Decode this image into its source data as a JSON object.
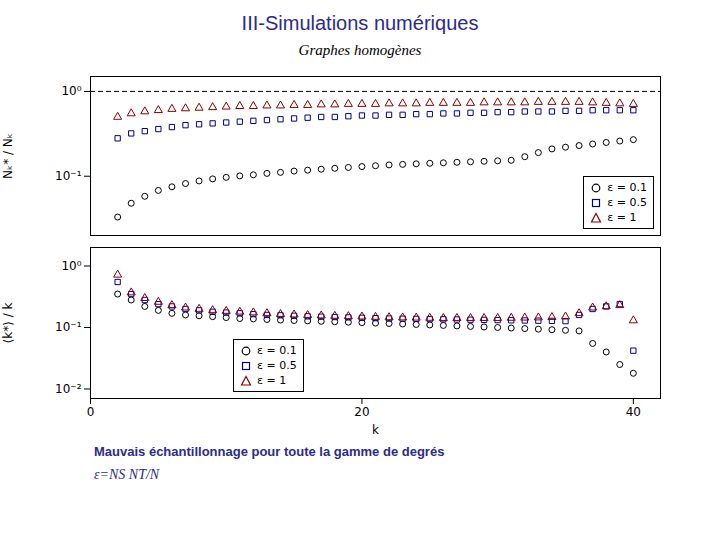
{
  "chart_data": [
    {
      "type": "scatter",
      "title": "III-Simulations numériques",
      "subtitle": "Graphes homogènes",
      "ylabel": "Nₖ* / Nₖ",
      "x": [
        2,
        3,
        4,
        5,
        6,
        7,
        8,
        9,
        10,
        11,
        12,
        13,
        14,
        15,
        16,
        17,
        18,
        19,
        20,
        21,
        22,
        23,
        24,
        25,
        26,
        27,
        28,
        29,
        30,
        31,
        32,
        33,
        34,
        35,
        36,
        37,
        38,
        39,
        40
      ],
      "series": [
        {
          "name": "ε = 0.1",
          "color": "#000000",
          "marker": "circle",
          "values": [
            0.033,
            0.048,
            0.058,
            0.068,
            0.075,
            0.082,
            0.088,
            0.093,
            0.097,
            0.101,
            0.104,
            0.108,
            0.111,
            0.115,
            0.118,
            0.121,
            0.124,
            0.127,
            0.13,
            0.133,
            0.136,
            0.138,
            0.14,
            0.142,
            0.144,
            0.146,
            0.148,
            0.15,
            0.152,
            0.154,
            0.17,
            0.19,
            0.21,
            0.22,
            0.23,
            0.24,
            0.25,
            0.26,
            0.27
          ]
        },
        {
          "name": "ε = 0.5",
          "color": "#00008B",
          "marker": "square",
          "values": [
            0.28,
            0.32,
            0.34,
            0.36,
            0.38,
            0.4,
            0.41,
            0.42,
            0.43,
            0.44,
            0.45,
            0.46,
            0.47,
            0.48,
            0.49,
            0.5,
            0.5,
            0.51,
            0.52,
            0.52,
            0.53,
            0.53,
            0.54,
            0.54,
            0.55,
            0.55,
            0.56,
            0.56,
            0.57,
            0.57,
            0.58,
            0.58,
            0.58,
            0.59,
            0.59,
            0.6,
            0.6,
            0.6,
            0.6
          ]
        },
        {
          "name": "ε = 1",
          "color": "#8B0000",
          "marker": "triangle",
          "values": [
            0.5,
            0.55,
            0.58,
            0.6,
            0.62,
            0.63,
            0.64,
            0.65,
            0.66,
            0.67,
            0.67,
            0.68,
            0.68,
            0.69,
            0.69,
            0.7,
            0.7,
            0.71,
            0.71,
            0.71,
            0.72,
            0.72,
            0.72,
            0.73,
            0.73,
            0.73,
            0.73,
            0.74,
            0.74,
            0.74,
            0.74,
            0.75,
            0.75,
            0.75,
            0.75,
            0.74,
            0.73,
            0.72,
            0.71
          ]
        }
      ],
      "hlines": [
        1
      ],
      "xlim": [
        0,
        42
      ],
      "ylim": [
        0.02,
        1.5
      ],
      "yticks": [
        {
          "value": 0.1,
          "label": "10⁻¹"
        },
        {
          "value": 1,
          "label": "10⁰"
        }
      ],
      "log": "y",
      "tick_labels": "y",
      "legend": "lower right"
    },
    {
      "type": "scatter",
      "xlabel": "k",
      "ylabel": "⟨k*⟩ / k",
      "x": [
        2,
        3,
        4,
        5,
        6,
        7,
        8,
        9,
        10,
        11,
        12,
        13,
        14,
        15,
        16,
        17,
        18,
        19,
        20,
        21,
        22,
        23,
        24,
        25,
        26,
        27,
        28,
        29,
        30,
        31,
        32,
        33,
        34,
        35,
        36,
        37,
        38,
        39,
        40
      ],
      "series": [
        {
          "name": "ε = 0.1",
          "color": "#000000",
          "marker": "circle",
          "values": [
            0.35,
            0.28,
            0.22,
            0.19,
            0.17,
            0.16,
            0.155,
            0.15,
            0.145,
            0.14,
            0.138,
            0.135,
            0.132,
            0.13,
            0.128,
            0.126,
            0.124,
            0.122,
            0.12,
            0.118,
            0.116,
            0.114,
            0.112,
            0.11,
            0.108,
            0.106,
            0.104,
            0.102,
            0.1,
            0.098,
            0.096,
            0.094,
            0.092,
            0.09,
            0.088,
            0.055,
            0.04,
            0.025,
            0.018
          ]
        },
        {
          "name": "ε = 0.5",
          "color": "#00008B",
          "marker": "square",
          "values": [
            0.55,
            0.35,
            0.28,
            0.24,
            0.22,
            0.2,
            0.19,
            0.18,
            0.175,
            0.17,
            0.165,
            0.16,
            0.158,
            0.155,
            0.152,
            0.15,
            0.148,
            0.146,
            0.144,
            0.142,
            0.14,
            0.139,
            0.138,
            0.137,
            0.136,
            0.135,
            0.134,
            0.133,
            0.132,
            0.131,
            0.13,
            0.129,
            0.128,
            0.127,
            0.16,
            0.2,
            0.22,
            0.24,
            0.042
          ]
        },
        {
          "name": "ε = 1",
          "color": "#8B0000",
          "marker": "triangle",
          "values": [
            0.72,
            0.37,
            0.3,
            0.26,
            0.23,
            0.21,
            0.2,
            0.19,
            0.185,
            0.18,
            0.175,
            0.17,
            0.165,
            0.162,
            0.159,
            0.156,
            0.154,
            0.152,
            0.15,
            0.148,
            0.146,
            0.145,
            0.144,
            0.143,
            0.142,
            0.142,
            0.142,
            0.142,
            0.142,
            0.143,
            0.144,
            0.145,
            0.147,
            0.15,
            0.17,
            0.21,
            0.22,
            0.23,
            0.13
          ]
        }
      ],
      "xlim": [
        0,
        42
      ],
      "xticks": [
        0,
        20,
        40
      ],
      "ylim": [
        0.007,
        2.0
      ],
      "yticks": [
        {
          "value": 0.01,
          "label": "10⁻²"
        },
        {
          "value": 0.1,
          "label": "10⁻¹"
        },
        {
          "value": 1,
          "label": "10⁰"
        }
      ],
      "log": "y",
      "legend": "lower left",
      "annotations": [
        "Mauvais échantillonnage pour toute la gamme de degrés",
        "ε=NS NT/N"
      ]
    }
  ]
}
